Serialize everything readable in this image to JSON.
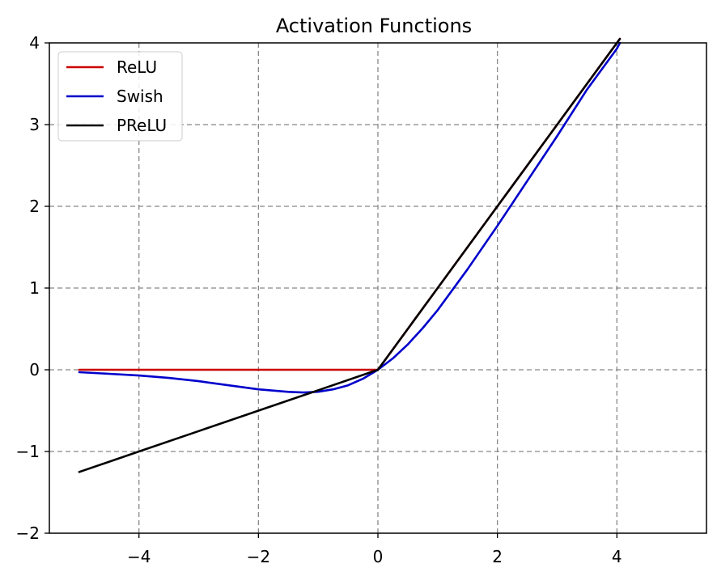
{
  "chart_data": {
    "type": "line",
    "title": "Activation Functions",
    "xlabel": "",
    "ylabel": "",
    "xlim": [
      -5.5,
      5.5
    ],
    "ylim": [
      -2,
      4
    ],
    "grid": true,
    "grid_style": "dashed",
    "legend_position": "top-left",
    "xticks": [
      -4,
      -2,
      0,
      2,
      4
    ],
    "yticks": [
      -2,
      -1,
      0,
      1,
      2,
      3,
      4
    ],
    "xtick_labels": [
      "−4",
      "−2",
      "0",
      "2",
      "4"
    ],
    "ytick_labels": [
      "−2",
      "−1",
      "0",
      "1",
      "2",
      "3",
      "4"
    ],
    "series": [
      {
        "name": "ReLU",
        "color": "#cc0000",
        "x": [
          -5,
          -4,
          -3,
          -2,
          -1,
          0,
          1,
          2,
          3,
          4,
          4.05
        ],
        "y": [
          0,
          0,
          0,
          0,
          0,
          0,
          1,
          2,
          3,
          4,
          4.05
        ]
      },
      {
        "name": "Swish",
        "color": "#0000cc",
        "x": [
          -5,
          -4.5,
          -4,
          -3.5,
          -3,
          -2.5,
          -2,
          -1.5,
          -1.25,
          -1,
          -0.75,
          -0.5,
          -0.25,
          0,
          0.25,
          0.5,
          0.75,
          1,
          1.5,
          2,
          2.5,
          3,
          3.5,
          4,
          4.05
        ],
        "y": [
          -0.03,
          -0.05,
          -0.07,
          -0.1,
          -0.14,
          -0.19,
          -0.24,
          -0.27,
          -0.278,
          -0.269,
          -0.24,
          -0.19,
          -0.11,
          0,
          0.14,
          0.31,
          0.51,
          0.73,
          1.23,
          1.76,
          2.31,
          2.86,
          3.43,
          3.93,
          4.0
        ]
      },
      {
        "name": "PReLU",
        "color": "#000000",
        "x": [
          -5,
          -4,
          -3,
          -2,
          -1,
          0,
          1,
          2,
          3,
          4,
          4.05
        ],
        "y": [
          -1.25,
          -1.0,
          -0.75,
          -0.5,
          -0.25,
          0,
          1,
          2,
          3,
          4,
          4.05
        ]
      }
    ]
  }
}
